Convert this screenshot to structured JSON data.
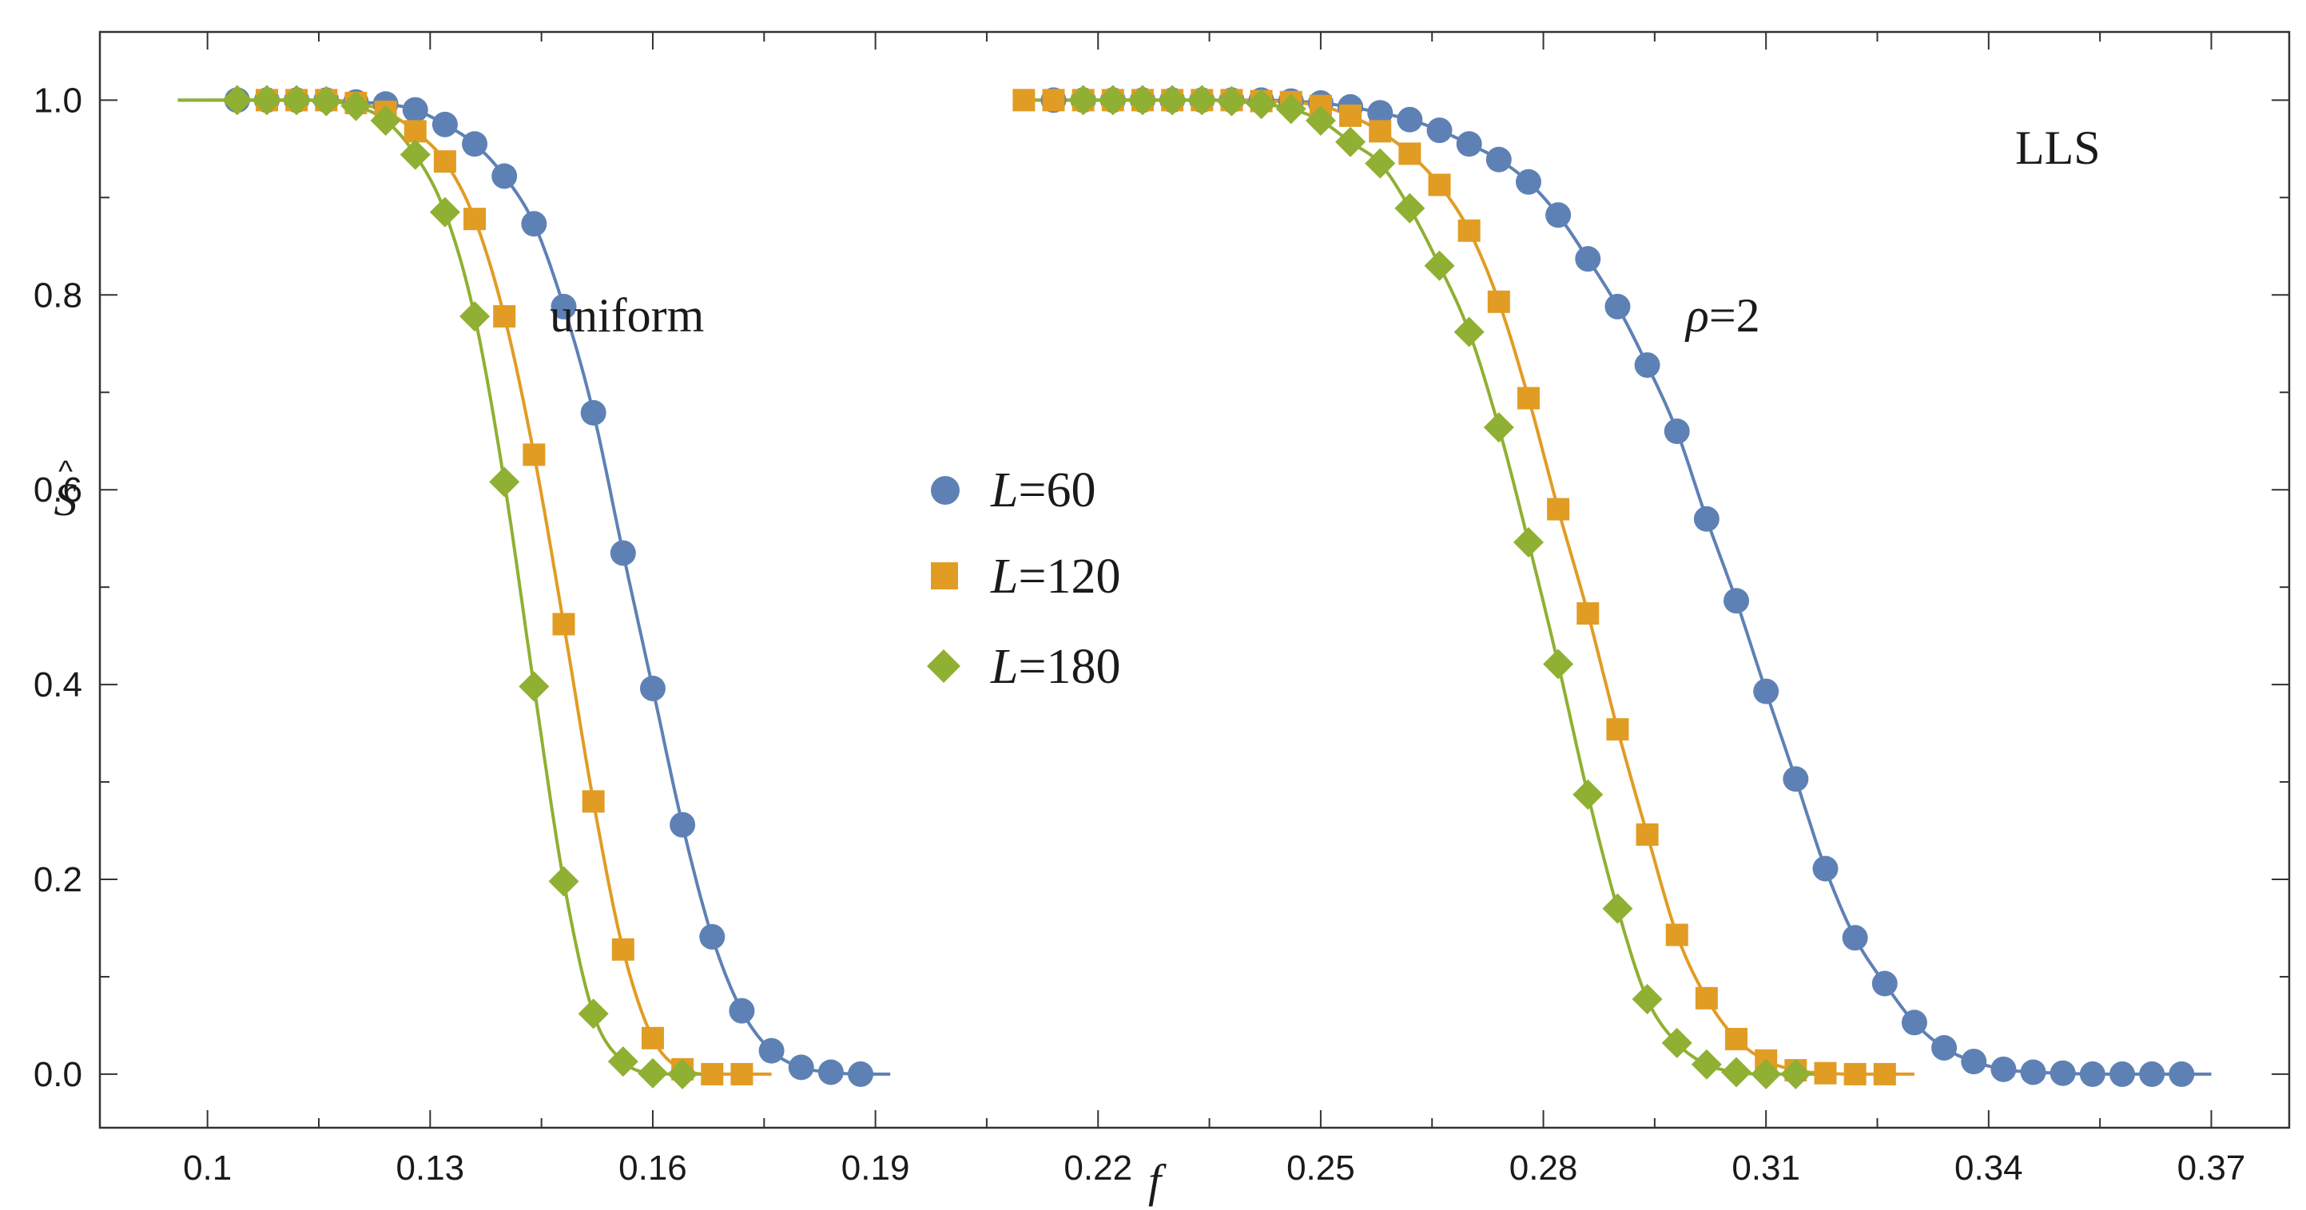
{
  "chart_data": {
    "type": "line",
    "title": "",
    "xlabel": "f",
    "ylabel": "S",
    "ylabel_accent": "^",
    "xlim": [
      0.0855,
      0.3805
    ],
    "ylim": [
      -0.055,
      1.07
    ],
    "xticks": [
      0.1,
      0.13,
      0.16,
      0.19,
      0.22,
      0.25,
      0.28,
      0.31,
      0.34,
      0.37
    ],
    "xtick_labels": [
      "0.1",
      "0.13",
      "0.16",
      "0.19",
      "0.22",
      "0.25",
      "0.28",
      "0.31",
      "0.34",
      "0.37"
    ],
    "yticks": [
      0.0,
      0.2,
      0.4,
      0.6,
      0.8,
      1.0
    ],
    "ytick_labels": [
      "0.0",
      "0.2",
      "0.4",
      "0.6",
      "0.8",
      "1.0"
    ],
    "legend_position": "center",
    "annotations": [
      {
        "text": "uniform",
        "x": 0.1595,
        "y": 0.775
      },
      {
        "text": "LLS",
        "x": 0.3565,
        "y": 0.935
      },
      {
        "text": "ρ=2",
        "x": 0.3046,
        "y": 0.775
      }
    ],
    "groups": [
      {
        "name": "uniform",
        "series": [
          {
            "name": "L=60",
            "legend": "L=60",
            "color": "#5e81b5",
            "marker": "circle",
            "x": [
              0.104,
              0.108,
              0.112,
              0.116,
              0.12,
              0.124,
              0.128,
              0.132,
              0.136,
              0.14,
              0.144,
              0.148,
              0.152,
              0.156,
              0.16,
              0.164,
              0.168,
              0.172,
              0.176,
              0.18,
              0.184,
              0.188
            ],
            "y": [
              1.0,
              1.0,
              1.0,
              1.0,
              0.998,
              0.996,
              0.99,
              0.975,
              0.955,
              0.922,
              0.873,
              0.788,
              0.679,
              0.535,
              0.396,
              0.256,
              0.141,
              0.065,
              0.024,
              0.007,
              0.002,
              0.0
            ],
            "curve_x": [
              0.096,
              0.192
            ]
          },
          {
            "name": "L=120",
            "legend": "L=120",
            "color": "#e19c24",
            "marker": "square",
            "x": [
              0.108,
              0.112,
              0.116,
              0.12,
              0.124,
              0.128,
              0.132,
              0.136,
              0.14,
              0.144,
              0.148,
              0.152,
              0.156,
              0.16,
              0.164,
              0.168,
              0.172
            ],
            "y": [
              1.0,
              1.0,
              1.0,
              0.997,
              0.988,
              0.968,
              0.937,
              0.878,
              0.778,
              0.636,
              0.462,
              0.28,
              0.128,
              0.037,
              0.005,
              0.0,
              0.0
            ],
            "curve_x": [
              0.1,
              0.176
            ]
          },
          {
            "name": "L=180",
            "legend": "L=180",
            "color": "#8fb032",
            "marker": "diamond",
            "x": [
              0.104,
              0.108,
              0.112,
              0.116,
              0.12,
              0.124,
              0.128,
              0.132,
              0.136,
              0.14,
              0.144,
              0.148,
              0.152,
              0.156,
              0.16,
              0.164
            ],
            "y": [
              1.0,
              1.0,
              1.0,
              0.999,
              0.994,
              0.979,
              0.944,
              0.885,
              0.778,
              0.608,
              0.398,
              0.198,
              0.062,
              0.013,
              0.001,
              0.0
            ],
            "curve_x": [
              0.096,
              0.168
            ]
          }
        ]
      },
      {
        "name": "rho=2",
        "series": [
          {
            "name": "L=60",
            "color": "#5e81b5",
            "marker": "circle",
            "x": [
              0.214,
              0.218,
              0.222,
              0.226,
              0.23,
              0.234,
              0.238,
              0.242,
              0.246,
              0.25,
              0.254,
              0.258,
              0.262,
              0.266,
              0.27,
              0.274,
              0.278,
              0.282,
              0.286,
              0.29,
              0.294,
              0.298,
              0.302,
              0.306,
              0.31,
              0.314,
              0.318,
              0.322,
              0.326,
              0.33,
              0.334,
              0.338,
              0.342,
              0.346,
              0.35,
              0.354,
              0.358,
              0.362,
              0.366
            ],
            "y": [
              1.0,
              1.0,
              1.0,
              1.0,
              1.0,
              1.0,
              1.0,
              1.0,
              0.999,
              0.997,
              0.993,
              0.987,
              0.98,
              0.969,
              0.955,
              0.939,
              0.916,
              0.882,
              0.837,
              0.788,
              0.728,
              0.66,
              0.57,
              0.486,
              0.393,
              0.303,
              0.211,
              0.14,
              0.093,
              0.053,
              0.027,
              0.013,
              0.005,
              0.002,
              0.001,
              0.0,
              0.0,
              0.0,
              0.0
            ],
            "curve_x": [
              0.21,
              0.37
            ]
          },
          {
            "name": "L=120",
            "color": "#e19c24",
            "marker": "square",
            "x": [
              0.21,
              0.214,
              0.218,
              0.222,
              0.226,
              0.23,
              0.234,
              0.238,
              0.242,
              0.246,
              0.25,
              0.254,
              0.258,
              0.262,
              0.266,
              0.27,
              0.274,
              0.278,
              0.282,
              0.286,
              0.29,
              0.294,
              0.298,
              0.302,
              0.306,
              0.31,
              0.314,
              0.318,
              0.322,
              0.326
            ],
            "y": [
              1.0,
              1.0,
              1.0,
              1.0,
              1.0,
              1.0,
              1.0,
              1.0,
              0.999,
              0.998,
              0.994,
              0.984,
              0.968,
              0.945,
              0.913,
              0.866,
              0.793,
              0.694,
              0.58,
              0.473,
              0.354,
              0.246,
              0.143,
              0.078,
              0.036,
              0.014,
              0.004,
              0.001,
              0.0,
              0.0
            ],
            "curve_x": [
              0.21,
              0.33
            ]
          },
          {
            "name": "L=180",
            "color": "#8fb032",
            "marker": "diamond",
            "x": [
              0.218,
              0.222,
              0.226,
              0.23,
              0.234,
              0.238,
              0.242,
              0.246,
              0.25,
              0.254,
              0.258,
              0.262,
              0.266,
              0.27,
              0.274,
              0.278,
              0.282,
              0.286,
              0.29,
              0.294,
              0.298,
              0.302,
              0.306,
              0.31,
              0.314
            ],
            "y": [
              1.0,
              1.0,
              1.0,
              1.0,
              1.0,
              0.999,
              0.996,
              0.991,
              0.979,
              0.957,
              0.935,
              0.889,
              0.83,
              0.762,
              0.664,
              0.546,
              0.421,
              0.287,
              0.17,
              0.077,
              0.032,
              0.01,
              0.002,
              0.0,
              0.0
            ],
            "curve_x": [
              0.21,
              0.318
            ]
          }
        ]
      }
    ]
  }
}
